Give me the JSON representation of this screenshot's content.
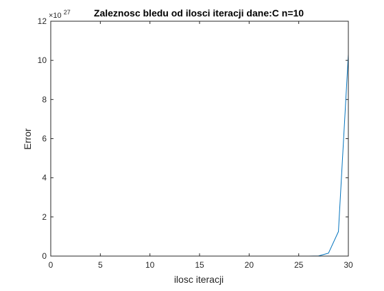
{
  "chart_data": {
    "type": "line",
    "title": "Zaleznosc bledu od ilosci iteracji dane:C n=10",
    "xlabel": "ilosc iteracji",
    "ylabel": "Error",
    "y_multiplier_label": "×10",
    "y_multiplier_exponent": "27",
    "xlim": [
      0,
      30
    ],
    "ylim": [
      0,
      12
    ],
    "x_ticks": [
      "0",
      "5",
      "10",
      "15",
      "20",
      "25",
      "30"
    ],
    "y_ticks": [
      "0",
      "2",
      "4",
      "6",
      "8",
      "10",
      "12"
    ],
    "grid": false,
    "series": [
      {
        "color": "#0072BD",
        "x": [
          1,
          2,
          3,
          4,
          5,
          6,
          7,
          8,
          9,
          10,
          11,
          12,
          13,
          14,
          15,
          16,
          17,
          18,
          19,
          20,
          21,
          22,
          23,
          24,
          25,
          26,
          27,
          28,
          29,
          30
        ],
        "y": [
          0,
          0,
          0,
          0,
          0,
          0,
          0,
          0,
          0,
          0,
          0,
          0,
          0,
          0,
          0,
          0,
          0,
          0,
          0,
          0,
          0,
          0,
          0,
          0,
          0,
          0,
          0.01,
          0.15,
          1.25,
          10.3
        ]
      }
    ]
  }
}
